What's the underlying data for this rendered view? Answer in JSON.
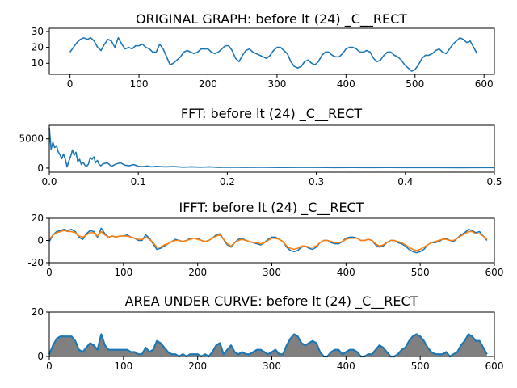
{
  "chart_data": [
    {
      "type": "line",
      "title": "ORIGINAL GRAPH: before lt (24) _C__RECT",
      "xlabel": "",
      "ylabel": "",
      "xlim": [
        -30,
        615
      ],
      "ylim": [
        3,
        32
      ],
      "xticks": [
        0,
        100,
        200,
        300,
        400,
        500,
        600
      ],
      "yticks": [
        10,
        20,
        30
      ],
      "series": [
        {
          "color": "#1f77b4",
          "x": [
            0,
            5,
            10,
            15,
            20,
            25,
            30,
            35,
            40,
            45,
            50,
            55,
            60,
            65,
            70,
            75,
            80,
            85,
            90,
            95,
            100,
            105,
            110,
            115,
            120,
            125,
            130,
            135,
            140,
            145,
            150,
            155,
            160,
            165,
            170,
            175,
            180,
            185,
            190,
            195,
            200,
            205,
            210,
            215,
            220,
            225,
            230,
            235,
            240,
            245,
            250,
            255,
            260,
            265,
            270,
            275,
            280,
            285,
            290,
            295,
            300,
            305,
            310,
            315,
            320,
            325,
            330,
            335,
            340,
            345,
            350,
            355,
            360,
            365,
            370,
            375,
            380,
            385,
            390,
            395,
            400,
            405,
            410,
            415,
            420,
            425,
            430,
            435,
            440,
            445,
            450,
            455,
            460,
            465,
            470,
            475,
            480,
            485,
            490,
            495,
            500,
            505,
            510,
            515,
            520,
            525,
            530,
            535,
            540,
            545,
            550,
            555,
            560,
            565,
            570,
            575,
            580,
            585,
            590
          ],
          "values": [
            17,
            20,
            23,
            25,
            26,
            25,
            26,
            24,
            20,
            18,
            22,
            25,
            24,
            20,
            26,
            22,
            19,
            20,
            19,
            21,
            21,
            22,
            20,
            19,
            17,
            17,
            22,
            19,
            14,
            9,
            10,
            12,
            14,
            17,
            18,
            17,
            16,
            17,
            19,
            19,
            19,
            17,
            16,
            17,
            19,
            21,
            21,
            18,
            13,
            11,
            15,
            18,
            19,
            17,
            16,
            15,
            14,
            13,
            15,
            18,
            20,
            20,
            18,
            16,
            11,
            8,
            7,
            8,
            11,
            12,
            10,
            9,
            11,
            15,
            17,
            17,
            15,
            14,
            14,
            16,
            19,
            20,
            20,
            19,
            17,
            17,
            18,
            17,
            13,
            11,
            12,
            15,
            17,
            17,
            15,
            14,
            12,
            9,
            7,
            5,
            6,
            9,
            13,
            15,
            15,
            16,
            18,
            19,
            17,
            16,
            19,
            22,
            24,
            26,
            25,
            23,
            24,
            20,
            16
          ]
        }
      ]
    },
    {
      "type": "line",
      "title": "FFT: before lt (24) _C__RECT",
      "xlabel": "",
      "ylabel": "",
      "xlim": [
        0,
        0.5
      ],
      "ylim": [
        -700,
        7300
      ],
      "xticks": [
        0.0,
        0.1,
        0.2,
        0.3,
        0.4,
        0.5
      ],
      "yticks": [
        0,
        5000
      ],
      "series": [
        {
          "color": "#1f77b4",
          "x": [
            0,
            0.002,
            0.004,
            0.006,
            0.008,
            0.01,
            0.012,
            0.014,
            0.016,
            0.018,
            0.02,
            0.022,
            0.024,
            0.026,
            0.028,
            0.03,
            0.032,
            0.034,
            0.036,
            0.038,
            0.04,
            0.042,
            0.044,
            0.046,
            0.048,
            0.05,
            0.052,
            0.054,
            0.056,
            0.058,
            0.06,
            0.065,
            0.07,
            0.075,
            0.08,
            0.085,
            0.09,
            0.095,
            0.1,
            0.105,
            0.11,
            0.115,
            0.12,
            0.13,
            0.14,
            0.15,
            0.16,
            0.17,
            0.18,
            0.19,
            0.2,
            0.22,
            0.24,
            0.26,
            0.28,
            0.3,
            0.32,
            0.34,
            0.36,
            0.38,
            0.4,
            0.42,
            0.44,
            0.46,
            0.48,
            0.5
          ],
          "values": [
            6900,
            3200,
            4400,
            3500,
            3800,
            2800,
            2300,
            1600,
            2400,
            1500,
            200,
            1200,
            2000,
            3100,
            2200,
            2700,
            1100,
            1500,
            600,
            1000,
            500,
            300,
            700,
            1800,
            1500,
            1900,
            900,
            1300,
            600,
            400,
            700,
            900,
            300,
            700,
            900,
            500,
            400,
            600,
            300,
            250,
            350,
            200,
            300,
            200,
            250,
            150,
            200,
            150,
            200,
            120,
            150,
            120,
            130,
            100,
            120,
            110,
            90,
            100,
            80,
            100,
            90,
            80,
            90,
            70,
            80,
            90
          ]
        }
      ]
    },
    {
      "type": "line",
      "title": "IFFT: before lt (24) _C__RECT",
      "xlabel": "",
      "ylabel": "",
      "xlim": [
        0,
        600
      ],
      "ylim": [
        -20,
        20
      ],
      "xticks": [
        0,
        100,
        200,
        300,
        400,
        500,
        600
      ],
      "yticks": [
        -20,
        0,
        20
      ],
      "series": [
        {
          "color": "#1f77b4",
          "x": [
            0,
            5,
            10,
            15,
            20,
            25,
            30,
            35,
            40,
            45,
            50,
            55,
            60,
            65,
            70,
            75,
            80,
            85,
            90,
            95,
            100,
            105,
            110,
            115,
            120,
            125,
            130,
            135,
            140,
            145,
            150,
            155,
            160,
            165,
            170,
            175,
            180,
            185,
            190,
            195,
            200,
            205,
            210,
            215,
            220,
            225,
            230,
            235,
            240,
            245,
            250,
            255,
            260,
            265,
            270,
            275,
            280,
            285,
            290,
            295,
            300,
            305,
            310,
            315,
            320,
            325,
            330,
            335,
            340,
            345,
            350,
            355,
            360,
            365,
            370,
            375,
            380,
            385,
            390,
            395,
            400,
            405,
            410,
            415,
            420,
            425,
            430,
            435,
            440,
            445,
            450,
            455,
            460,
            465,
            470,
            475,
            480,
            485,
            490,
            495,
            500,
            505,
            510,
            515,
            520,
            525,
            530,
            535,
            540,
            545,
            550,
            555,
            560,
            565,
            570,
            575,
            580,
            585,
            590
          ],
          "values": [
            -1,
            5,
            8,
            9,
            10,
            9,
            10,
            8,
            3,
            1,
            6,
            9,
            8,
            3,
            11,
            6,
            3,
            4,
            3,
            4,
            4,
            5,
            3,
            2,
            0,
            0,
            5,
            2,
            -3,
            -8,
            -7,
            -5,
            -3,
            -1,
            1,
            0,
            -1,
            0,
            2,
            2,
            2,
            0,
            -1,
            0,
            2,
            5,
            6,
            1,
            -4,
            -6,
            -2,
            1,
            2,
            0,
            -1,
            -2,
            -3,
            -4,
            -2,
            1,
            3,
            3,
            1,
            -1,
            -6,
            -9,
            -10,
            -9,
            -6,
            -5,
            -7,
            -8,
            -6,
            -2,
            0,
            0,
            -2,
            -3,
            -3,
            -1,
            2,
            3,
            3,
            2,
            0,
            0,
            1,
            0,
            -4,
            -6,
            -5,
            -2,
            0,
            0,
            -2,
            -3,
            -5,
            -8,
            -10,
            -11,
            -10,
            -8,
            -4,
            -2,
            -2,
            -1,
            1,
            2,
            0,
            -1,
            2,
            5,
            7,
            10,
            9,
            7,
            8,
            4,
            0
          ]
        },
        {
          "color": "#ff7f0e",
          "x": [
            0,
            5,
            10,
            15,
            20,
            25,
            30,
            35,
            40,
            45,
            50,
            55,
            60,
            65,
            70,
            75,
            80,
            85,
            90,
            95,
            100,
            105,
            110,
            115,
            120,
            125,
            130,
            135,
            140,
            145,
            150,
            155,
            160,
            165,
            170,
            175,
            180,
            185,
            190,
            195,
            200,
            205,
            210,
            215,
            220,
            225,
            230,
            235,
            240,
            245,
            250,
            255,
            260,
            265,
            270,
            275,
            280,
            285,
            290,
            295,
            300,
            305,
            310,
            315,
            320,
            325,
            330,
            335,
            340,
            345,
            350,
            355,
            360,
            365,
            370,
            375,
            380,
            385,
            390,
            395,
            400,
            405,
            410,
            415,
            420,
            425,
            430,
            435,
            440,
            445,
            450,
            455,
            460,
            465,
            470,
            475,
            480,
            485,
            490,
            495,
            500,
            505,
            510,
            515,
            520,
            525,
            530,
            535,
            540,
            545,
            550,
            555,
            560,
            565,
            570,
            575,
            580,
            585,
            590
          ],
          "values": [
            1,
            5,
            7,
            8,
            9,
            8,
            8,
            7,
            4,
            3,
            5,
            7,
            7,
            4,
            8,
            5,
            3,
            4,
            3,
            4,
            4,
            4,
            3,
            2,
            1,
            1,
            3,
            1,
            -2,
            -6,
            -6,
            -4,
            -3,
            -1,
            0,
            0,
            -1,
            0,
            1,
            2,
            1,
            0,
            -1,
            0,
            2,
            4,
            5,
            1,
            -3,
            -5,
            -2,
            0,
            1,
            0,
            -1,
            -2,
            -2,
            -3,
            -2,
            0,
            2,
            2,
            1,
            -1,
            -5,
            -7,
            -8,
            -7,
            -5,
            -5,
            -6,
            -6,
            -5,
            -2,
            0,
            0,
            -1,
            -2,
            -2,
            -1,
            1,
            2,
            2,
            2,
            0,
            0,
            1,
            0,
            -3,
            -5,
            -4,
            -2,
            0,
            0,
            -1,
            -2,
            -4,
            -6,
            -8,
            -9,
            -8,
            -6,
            -4,
            -2,
            -1,
            0,
            1,
            1,
            0,
            0,
            2,
            4,
            6,
            8,
            8,
            6,
            6,
            4,
            1
          ]
        }
      ]
    },
    {
      "type": "area",
      "title": "AREA UNDER CURVE: before lt (24) _C__RECT",
      "xlabel": "",
      "ylabel": "",
      "xlim": [
        0,
        600
      ],
      "ylim": [
        0,
        20
      ],
      "xticks": [
        0,
        100,
        200,
        300,
        400,
        500,
        600
      ],
      "yticks": [
        0,
        20
      ],
      "series": [
        {
          "color": "#1f77b4",
          "fill": "#808080",
          "x": [
            0,
            5,
            10,
            15,
            20,
            25,
            30,
            35,
            40,
            45,
            50,
            55,
            60,
            65,
            70,
            75,
            80,
            85,
            90,
            95,
            100,
            105,
            110,
            115,
            120,
            125,
            130,
            135,
            140,
            145,
            150,
            155,
            160,
            165,
            170,
            175,
            180,
            185,
            190,
            195,
            200,
            205,
            210,
            215,
            220,
            225,
            230,
            235,
            240,
            245,
            250,
            255,
            260,
            265,
            270,
            275,
            280,
            285,
            290,
            295,
            300,
            305,
            310,
            315,
            320,
            325,
            330,
            335,
            340,
            345,
            350,
            355,
            360,
            365,
            370,
            375,
            380,
            385,
            390,
            395,
            400,
            405,
            410,
            415,
            420,
            425,
            430,
            435,
            440,
            445,
            450,
            455,
            460,
            465,
            470,
            475,
            480,
            485,
            490,
            495,
            500,
            505,
            510,
            515,
            520,
            525,
            530,
            535,
            540,
            545,
            550,
            555,
            560,
            565,
            570,
            575,
            580,
            585,
            590
          ],
          "values": [
            1,
            5,
            8,
            9,
            9,
            9,
            9,
            7,
            3,
            2,
            4,
            6,
            5,
            3,
            10,
            5,
            3,
            3,
            3,
            3,
            3,
            3,
            2,
            2,
            1,
            1,
            4,
            2,
            3,
            7,
            6,
            4,
            2,
            1,
            1,
            0,
            1,
            0,
            1,
            1,
            1,
            0,
            1,
            0,
            2,
            5,
            6,
            1,
            3,
            5,
            2,
            1,
            2,
            1,
            1,
            2,
            3,
            3,
            2,
            1,
            2,
            3,
            1,
            1,
            5,
            8,
            10,
            9,
            6,
            5,
            6,
            7,
            6,
            2,
            0,
            0,
            2,
            3,
            3,
            1,
            2,
            3,
            3,
            2,
            0,
            0,
            1,
            1,
            3,
            5,
            4,
            2,
            0,
            0,
            1,
            3,
            4,
            7,
            9,
            10,
            9,
            7,
            4,
            2,
            1,
            1,
            1,
            2,
            0,
            1,
            2,
            5,
            7,
            10,
            9,
            7,
            7,
            4,
            1
          ]
        }
      ]
    }
  ]
}
